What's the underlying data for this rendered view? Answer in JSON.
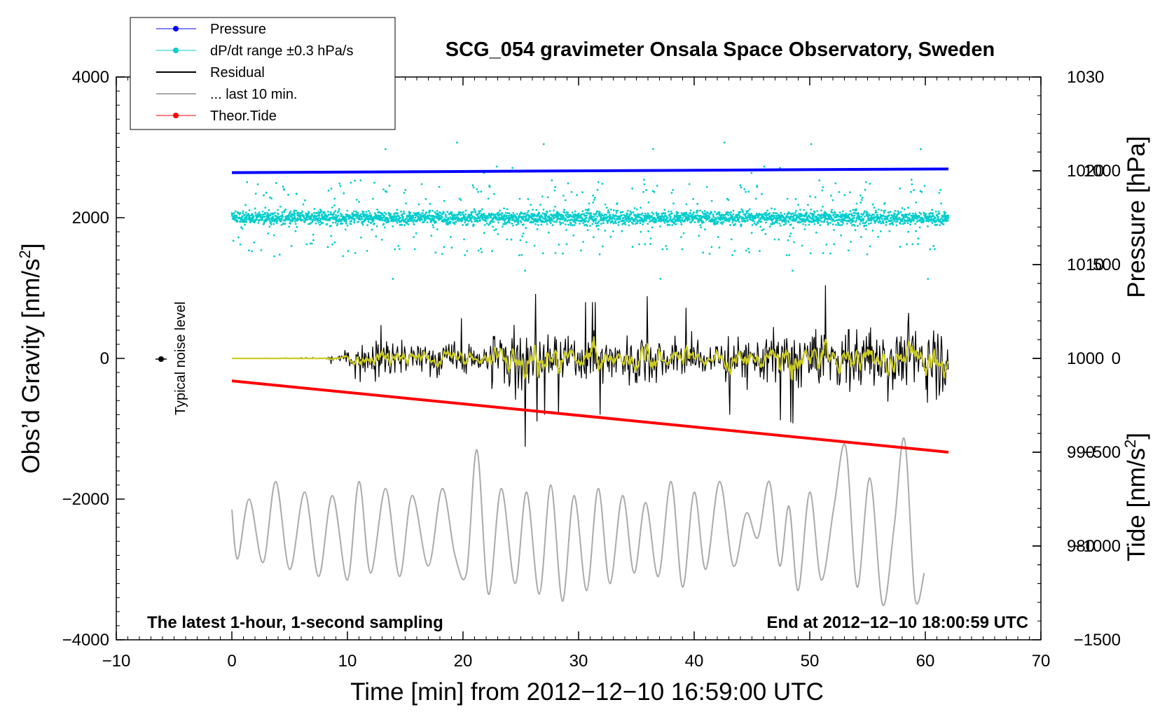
{
  "chart_data": {
    "type": "line",
    "title": "SCG_054 gravimeter Onsala Space Observatory, Sweden",
    "xlabel": "Time [min] from 2012−12−10 16:59:00 UTC",
    "ylabel": {
      "main": "Obs’d Gravity [nm/s",
      "sup": "2",
      "end": "]"
    },
    "y2label": "Pressure [hPa]",
    "y3label": {
      "main": "Tide [nm/s",
      "sup": "2",
      "end": "]"
    },
    "xlim": [
      -10,
      70
    ],
    "ylim": [
      -4000,
      4000
    ],
    "y2lim": [
      970,
      1030
    ],
    "y3lim": [
      -1500,
      1500
    ],
    "xticks": [
      "−10",
      "0",
      "10",
      "20",
      "30",
      "40",
      "50",
      "60",
      "70"
    ],
    "yticks": [
      "4000",
      "2000",
      "0",
      "−2000",
      "−4000"
    ],
    "y2ticks": [
      "1030",
      "1020",
      "1010",
      "1000",
      "990",
      "980"
    ],
    "y3ticks": [
      "1000",
      "500",
      "0",
      "−500",
      "−1000",
      "−1500"
    ],
    "noise_label": "Typical noise level",
    "annotation_left": "The latest 1-hour, 1-second sampling",
    "annotation_right": "End at 2012−12−10 18:00:59 UTC",
    "legend": [
      {
        "label": "Pressure",
        "color": "#0000ff",
        "marker": true
      },
      {
        "label": "dP/dt range ±0.3 hPa/s",
        "color": "#00cccc",
        "marker": true
      },
      {
        "label": "Residual",
        "color": "#000000",
        "marker": false
      },
      {
        "label": "... last 10 min.",
        "color": "#aaaaaa",
        "marker": false
      },
      {
        "label": "Theor.Tide",
        "color": "#ff0000",
        "marker": true
      }
    ],
    "series": {
      "pressure": {
        "name": "Pressure",
        "axis": "pressure",
        "unit": "hPa",
        "color": "#0000ff",
        "x": [
          0,
          62
        ],
        "values": [
          1019.8,
          1020.2
        ]
      },
      "dpdt": {
        "name": "dP/dt range ±0.3 hPa/s",
        "axis": "gravity",
        "color": "#00cccc",
        "x_range": [
          0,
          62
        ],
        "center": 2000,
        "typical_spread": 150,
        "max_excursion": 1000
      },
      "residual": {
        "name": "Residual",
        "axis": "gravity",
        "color": "#000000",
        "x": [
          0,
          8,
          9,
          10,
          11,
          12,
          13,
          14,
          15,
          16,
          17,
          18,
          19,
          20,
          21,
          22,
          23,
          24,
          25,
          26,
          27,
          28,
          29,
          30,
          31,
          32,
          33,
          34,
          35,
          36,
          37,
          38,
          39,
          40,
          41,
          42,
          43,
          44,
          45,
          46,
          47,
          48,
          49,
          50,
          51,
          52,
          53,
          54,
          55,
          56,
          57,
          58,
          59,
          60,
          61,
          62
        ],
        "amplitude": [
          0,
          10,
          80,
          150,
          200,
          300,
          700,
          500,
          400,
          400,
          350,
          400,
          400,
          350,
          300,
          400,
          800,
          900,
          900,
          600,
          500,
          500,
          500,
          500,
          500,
          500,
          500,
          550,
          600,
          550,
          500,
          450,
          450,
          450,
          450,
          500,
          500,
          500,
          500,
          550,
          550,
          550,
          600,
          600,
          650,
          650,
          700,
          700,
          750,
          750,
          750,
          800,
          800,
          850,
          900,
          900
        ]
      },
      "last10": {
        "name": "... last 10 min.",
        "axis": "gravity",
        "color": "#aaaaaa",
        "x": [
          0,
          0.5,
          1.5,
          2.7,
          3.8,
          5,
          6.3,
          7.5,
          8.7,
          10,
          11,
          12,
          13.3,
          14.5,
          15.6,
          17,
          18.2,
          19.3,
          20.3,
          21.2,
          22.2,
          23.3,
          24.5,
          25.5,
          26.6,
          27.6,
          28.6,
          29.6,
          30.7,
          31.7,
          32.7,
          33.8,
          34.8,
          35.8,
          36.9,
          38,
          39,
          40,
          41,
          42.2,
          43.4,
          44.5,
          45.5,
          46.5,
          47.4,
          48.2,
          49,
          50,
          51,
          52.1,
          53.1,
          54.1,
          55.2,
          56.3,
          57.3,
          58.2,
          59.1,
          59.9
        ],
        "values": [
          -2150,
          -2850,
          -2000,
          -2900,
          -1750,
          -3000,
          -1900,
          -3100,
          -1950,
          -3150,
          -1750,
          -3050,
          -1850,
          -3100,
          -1950,
          -2950,
          -1850,
          -2800,
          -3050,
          -1300,
          -3350,
          -1850,
          -3200,
          -1900,
          -3350,
          -1800,
          -3450,
          -1950,
          -3300,
          -1850,
          -3200,
          -1950,
          -3050,
          -2050,
          -3100,
          -1750,
          -3250,
          -1900,
          -3000,
          -1750,
          -2950,
          -2200,
          -2550,
          -1750,
          -2950,
          -2100,
          -3300,
          -1900,
          -3150,
          -2100,
          -1250,
          -3250,
          -1700,
          -3500,
          -2400,
          -1150,
          -3400,
          -3050
        ]
      },
      "tide": {
        "name": "Theor.Tide",
        "axis": "tide",
        "unit": "nm/s2",
        "color": "#ff0000",
        "x": [
          0,
          62
        ],
        "values": [
          -120,
          -500
        ]
      }
    }
  }
}
